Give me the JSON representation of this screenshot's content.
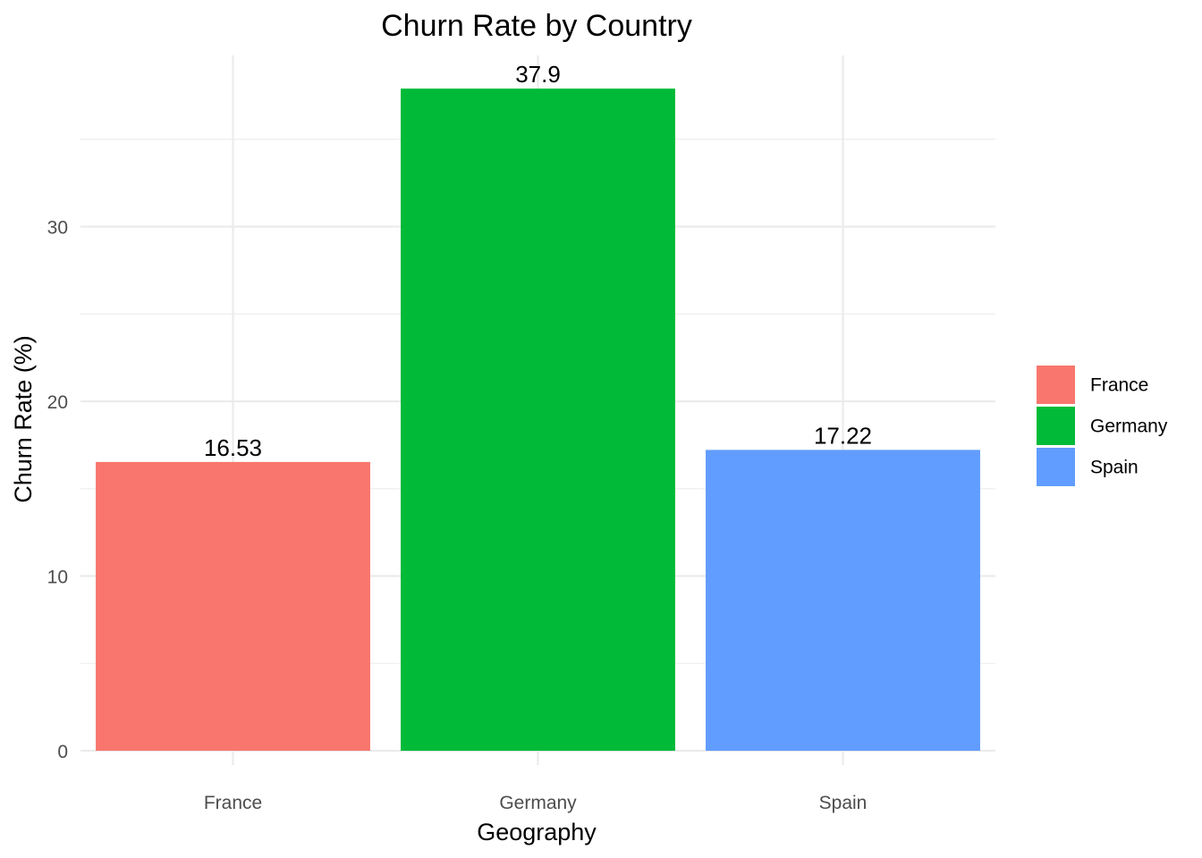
{
  "chart_data": {
    "type": "bar",
    "title": "Churn Rate by Country",
    "xlabel": "Geography",
    "ylabel": "Churn Rate (%)",
    "categories": [
      "France",
      "Germany",
      "Spain"
    ],
    "values": [
      16.53,
      37.9,
      17.22
    ],
    "value_labels": [
      "16.53",
      "37.9",
      "17.22"
    ],
    "colors": [
      "#F8766D",
      "#00BA38",
      "#619CFF"
    ],
    "y_ticks": [
      0,
      10,
      20,
      30
    ],
    "y_tick_labels": [
      "0",
      "10",
      "20",
      "30"
    ],
    "y_minor_ticks": [
      5,
      15,
      25,
      35
    ],
    "ylim": [
      0,
      39.8
    ],
    "grid": true,
    "legend": {
      "position": "right",
      "entries": [
        "France",
        "Germany",
        "Spain"
      ]
    }
  }
}
